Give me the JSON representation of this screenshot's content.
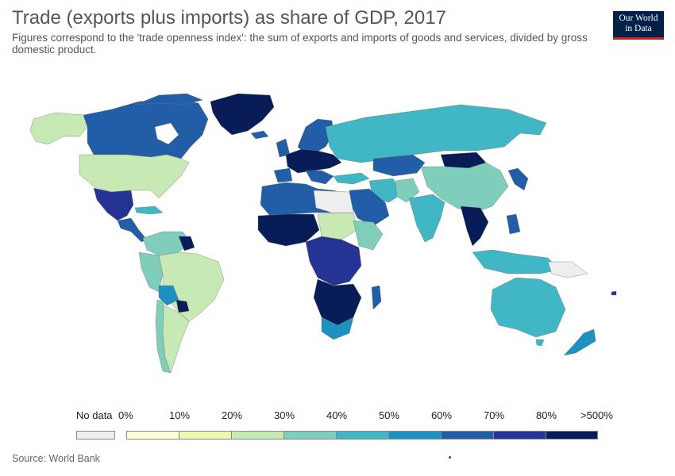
{
  "header": {
    "title": "Trade (exports plus imports) as share of GDP, 2017",
    "subtitle": "Figures correspond to the 'trade openness index': the sum of exports and imports of goods and services, divided by gross domestic product."
  },
  "logo": {
    "line1": "Our World",
    "line2": "in Data"
  },
  "legend": {
    "no_data_label": "No data",
    "no_data_color": "#eeeeee",
    "labels": [
      "0%",
      "10%",
      "20%",
      "30%",
      "40%",
      "50%",
      "60%",
      "70%",
      "80%",
      ">500%"
    ],
    "colors": [
      "#ffffd9",
      "#edf8b1",
      "#c7e9b4",
      "#7fcdbb",
      "#41b6c4",
      "#1d91c0",
      "#225ea8",
      "#253494",
      "#081d58"
    ]
  },
  "footer": {
    "source": "Source: World Bank"
  }
}
